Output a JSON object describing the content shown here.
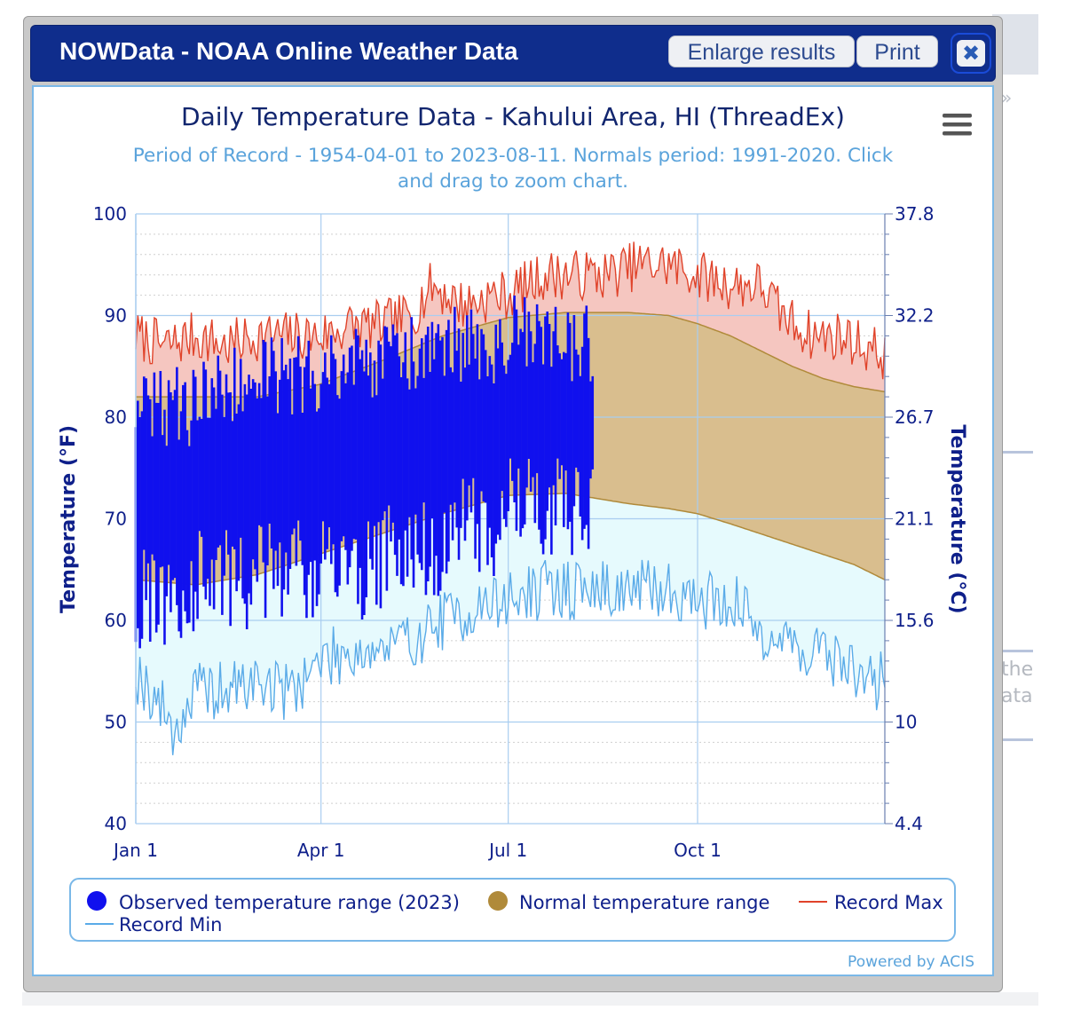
{
  "window": {
    "title": "NOWData - NOAA Online Weather Data",
    "enlarge_label": "Enlarge results",
    "print_label": "Print",
    "close_label": "✖"
  },
  "background": {
    "chevron": "»",
    "text_line1": "the",
    "text_line2": "ata"
  },
  "menu_icon": "hamburger-menu-icon",
  "credit": "Powered by ACIS",
  "chart_data": {
    "type": "area",
    "title": "Daily Temperature Data - Kahului Area, HI (ThreadEx)",
    "subtitle_line1": "Period of Record - 1954-04-01 to 2023-08-11. Normals period: 1991-2020. Click",
    "subtitle_line2": "and drag to zoom chart.",
    "ylabel_left": "Temperature (°F)",
    "ylabel_right": "Temperature (°C)",
    "ylim": [
      40,
      100
    ],
    "yticks_left": [
      "40",
      "50",
      "60",
      "70",
      "80",
      "90",
      "100"
    ],
    "yticks_right": [
      "4.4",
      "10",
      "15.6",
      "21.1",
      "26.7",
      "32.2",
      "37.8"
    ],
    "xlim_days": [
      1,
      365
    ],
    "xticks": [
      {
        "day": 1,
        "label": "Jan 1"
      },
      {
        "day": 91,
        "label": "Apr 1"
      },
      {
        "day": 182,
        "label": "Jul 1"
      },
      {
        "day": 274,
        "label": "Oct 1"
      }
    ],
    "grid": true,
    "legend_position": "bottom",
    "legend": [
      {
        "name": "Observed temperature range (2023)",
        "marker": "circle",
        "color": "#1010ee"
      },
      {
        "name": "Normal temperature range",
        "marker": "circle",
        "color": "#b08a3a"
      },
      {
        "name": "Record Max",
        "marker": "line",
        "color": "#e0432a"
      },
      {
        "name": "Record Min",
        "marker": "line",
        "color": "#5aabe8"
      }
    ],
    "colors": {
      "observed": "#1010ee",
      "normal_fill": "#d9be8e",
      "normal_line": "#b08a3a",
      "record_max_line": "#e0432a",
      "record_max_fill": "#f5c6c0",
      "record_min_line": "#5aabe8",
      "record_min_fill": "#e6fafd"
    },
    "record_max": {
      "day": [
        1,
        15,
        30,
        45,
        60,
        75,
        91,
        105,
        120,
        135,
        145,
        160,
        175,
        182,
        200,
        215,
        230,
        245,
        260,
        274,
        290,
        305,
        315,
        330,
        345,
        365
      ],
      "value": [
        88,
        87,
        88,
        87,
        88,
        88,
        88,
        89,
        89,
        90,
        93,
        91,
        92,
        92,
        94,
        94,
        94,
        95,
        95,
        94,
        93,
        93,
        90,
        88,
        88,
        86
      ]
    },
    "record_min": {
      "day": [
        1,
        15,
        20,
        30,
        45,
        60,
        75,
        91,
        105,
        120,
        135,
        150,
        165,
        182,
        200,
        215,
        230,
        245,
        260,
        274,
        290,
        305,
        315,
        330,
        345,
        355,
        365
      ],
      "value": [
        55,
        51,
        49,
        53,
        53,
        54,
        53,
        56,
        57,
        57,
        58,
        60,
        61,
        62,
        63,
        63,
        63,
        63,
        63,
        62,
        62,
        59,
        58,
        57,
        56,
        54,
        54
      ]
    },
    "normal_max": {
      "day": [
        1,
        30,
        60,
        90,
        120,
        150,
        182,
        210,
        240,
        260,
        274,
        290,
        305,
        320,
        335,
        350,
        365
      ],
      "value": [
        82,
        82,
        82,
        83.2,
        85.5,
        88,
        89.8,
        90.3,
        90.3,
        90,
        89.2,
        88,
        86.5,
        85,
        83.8,
        83,
        82.5
      ]
    },
    "normal_min": {
      "day": [
        1,
        30,
        60,
        90,
        120,
        150,
        182,
        210,
        240,
        260,
        274,
        290,
        305,
        320,
        335,
        350,
        365
      ],
      "value": [
        64,
        63.5,
        64.5,
        66.5,
        68.5,
        70.5,
        72.3,
        72.5,
        71.5,
        71,
        70.5,
        69.5,
        68.5,
        67.5,
        66.5,
        65.5,
        64
      ]
    },
    "observed_2023": {
      "day_range": [
        1,
        223
      ],
      "high_by_month": {
        "Jan": 81,
        "Feb": 83,
        "Mar": 84,
        "Apr": 85,
        "May": 86,
        "Jun": 87,
        "Jul": 88,
        "Aug": 87
      },
      "low_by_month": {
        "Jan": 62,
        "Feb": 64,
        "Mar": 65,
        "Apr": 65,
        "May": 67,
        "Jun": 69,
        "Jul": 71,
        "Aug": 71
      },
      "peak_high": 94,
      "lowest_low": 56
    }
  }
}
